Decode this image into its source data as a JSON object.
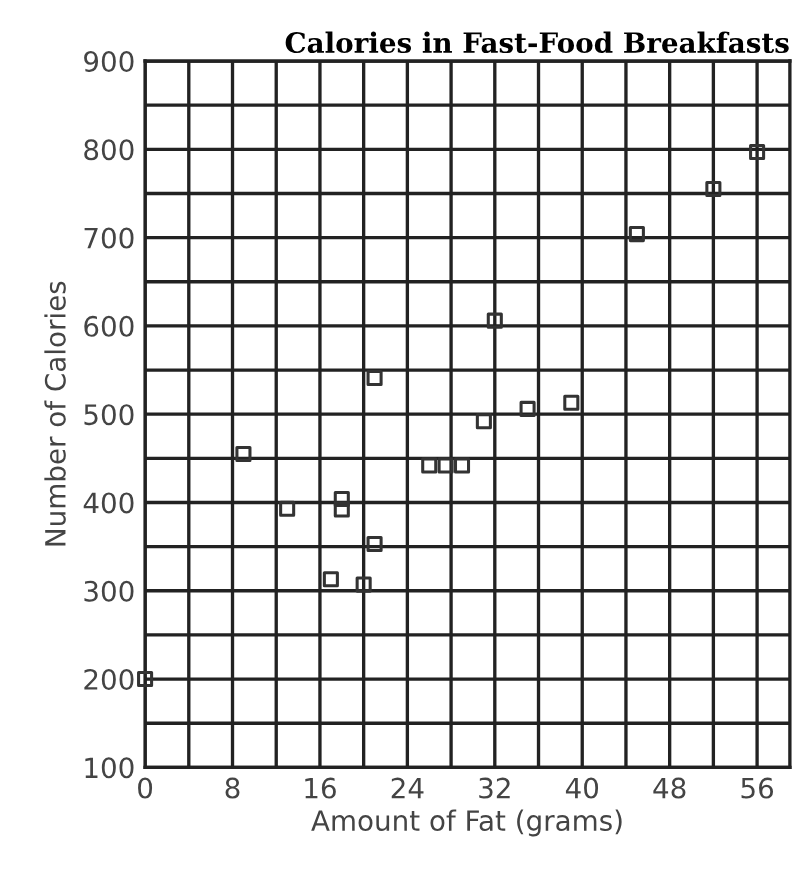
{
  "chart_data": {
    "type": "scatter",
    "title": "Calories in Fast-Food Breakfasts",
    "xlabel": "Amount of Fat (grams)",
    "ylabel": "Number of Calories",
    "x": [
      0,
      9,
      13,
      17,
      18,
      18,
      20,
      21,
      21,
      26,
      27.5,
      29,
      31,
      32,
      35,
      39,
      45,
      52,
      56
    ],
    "values": [
      200,
      455,
      393,
      313,
      404,
      392,
      307,
      353,
      541,
      442,
      442,
      442,
      492,
      606,
      506,
      513,
      704,
      755,
      797
    ],
    "color": "#333333",
    "marker": "square",
    "grid": true,
    "xlim": [
      0,
      59
    ],
    "ylim": [
      100,
      900
    ],
    "xticks": [
      0,
      {
        "value": 4,
        "label": null
      },
      8,
      {
        "value": 12,
        "label": null
      },
      16,
      {
        "value": 20,
        "label": null
      },
      24,
      {
        "value": 28,
        "label": null
      },
      32,
      {
        "value": 36,
        "label": null
      },
      40,
      {
        "value": 44,
        "label": null
      },
      48,
      {
        "value": 52,
        "label": null
      },
      56
    ],
    "yticks": [
      100,
      {
        "value": 150,
        "label": null
      },
      200,
      {
        "value": 250,
        "label": null
      },
      300,
      {
        "value": 350,
        "label": null
      },
      400,
      {
        "value": 450,
        "label": null
      },
      500,
      {
        "value": 550,
        "label": null
      },
      600,
      {
        "value": 650,
        "label": null
      },
      700,
      {
        "value": 750,
        "label": null
      },
      800,
      {
        "value": 850,
        "label": null
      },
      900
    ]
  }
}
